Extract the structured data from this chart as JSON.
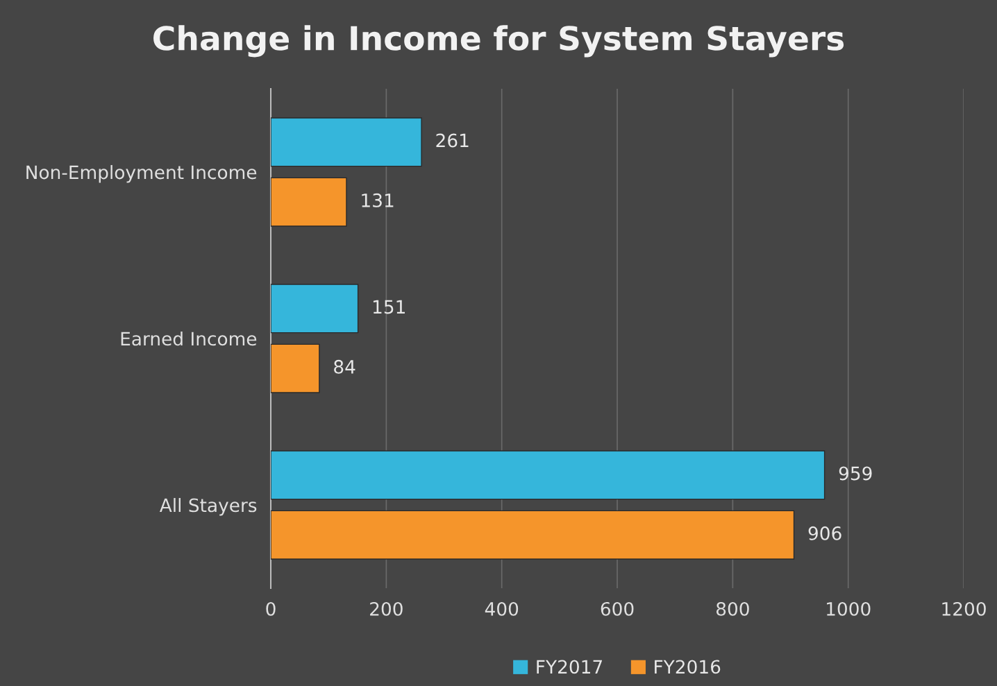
{
  "chart_data": {
    "type": "bar",
    "orientation": "horizontal",
    "title": "Change in Income for System Stayers",
    "categories": [
      "Non-Employment Income",
      "Earned Income",
      "All Stayers"
    ],
    "series": [
      {
        "name": "FY2017",
        "color": "#35b6db",
        "values": [
          261,
          151,
          959
        ]
      },
      {
        "name": "FY2016",
        "color": "#f5952b",
        "values": [
          131,
          84,
          906
        ]
      }
    ],
    "xlim": [
      0,
      1200
    ],
    "xticks": [
      0,
      200,
      400,
      600,
      800,
      1000,
      1200
    ],
    "grid": "x",
    "legend": "bottom",
    "data_labels": true
  }
}
